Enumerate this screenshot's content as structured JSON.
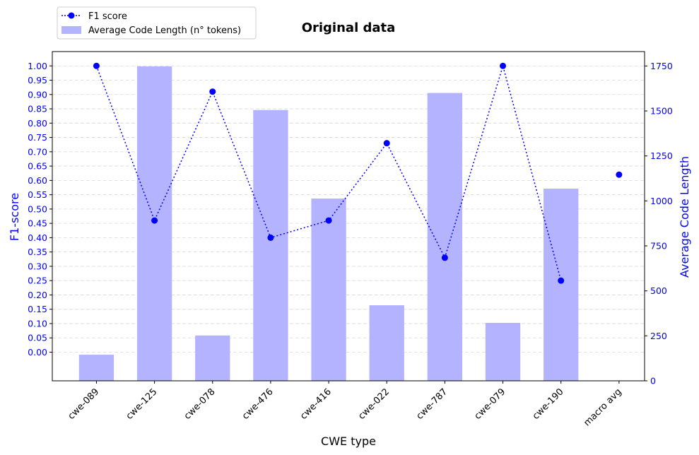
{
  "chart_data": {
    "type": "bar",
    "title": "Original data",
    "xlabel": "CWE type",
    "ylabel_left": "F1-score",
    "ylabel_right": "Average Code Length",
    "categories": [
      "cwe-089",
      "cwe-125",
      "cwe-078",
      "cwe-476",
      "cwe-416",
      "cwe-022",
      "cwe-787",
      "cwe-079",
      "cwe-190",
      "macro avg"
    ],
    "series": [
      {
        "name": "F1 score",
        "type": "line",
        "axis": "left",
        "values": [
          1.0,
          0.46,
          0.91,
          0.4,
          0.46,
          0.73,
          0.33,
          1.0,
          0.25,
          0.62
        ],
        "connected_upto_index": 8
      },
      {
        "name": "Average Code Length (n° tokens)",
        "type": "bar",
        "axis": "right",
        "values": [
          145,
          1748,
          252,
          1505,
          1013,
          420,
          1600,
          322,
          1068,
          null
        ]
      }
    ],
    "ylim_left": [
      -0.1,
      1.05
    ],
    "yticks_left": [
      "0.00",
      "0.05",
      "0.10",
      "0.15",
      "0.20",
      "0.25",
      "0.30",
      "0.35",
      "0.40",
      "0.45",
      "0.50",
      "0.55",
      "0.60",
      "0.65",
      "0.70",
      "0.75",
      "0.80",
      "0.85",
      "0.90",
      "0.95",
      "1.00"
    ],
    "ylim_right": [
      0,
      1830
    ],
    "yticks_right": [
      "0",
      "250",
      "500",
      "750",
      "1000",
      "1250",
      "1500",
      "1750"
    ],
    "grid": "horizontal dashed",
    "legend_position": "top-left outside",
    "colors": {
      "line": "#0000ff",
      "bar": "#b3b3ff",
      "axis_text": "#0000ff"
    }
  }
}
